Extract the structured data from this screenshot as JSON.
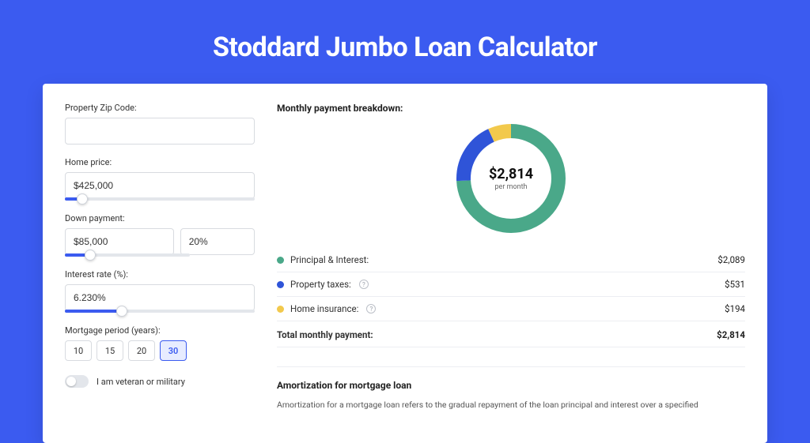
{
  "page": {
    "title": "Stoddard Jumbo Loan Calculator",
    "background_color": "#3b5bf0",
    "card_background": "#ffffff"
  },
  "form": {
    "zip": {
      "label": "Property Zip Code:",
      "value": ""
    },
    "home_price": {
      "label": "Home price:",
      "value": "$425,000",
      "slider_pct": 9
    },
    "down_payment": {
      "label": "Down payment:",
      "amount": "$85,000",
      "percent": "20%",
      "slider_pct": 20
    },
    "interest_rate": {
      "label": "Interest rate (%):",
      "value": "6.230%",
      "slider_pct": 30
    },
    "mortgage_period": {
      "label": "Mortgage period (years):",
      "options": [
        "10",
        "15",
        "20",
        "30"
      ],
      "selected": "30"
    },
    "veteran": {
      "label": "I am veteran or military",
      "on": false
    }
  },
  "breakdown": {
    "title": "Monthly payment breakdown:",
    "center_amount": "$2,814",
    "center_sub": "per month",
    "donut": {
      "series": [
        {
          "key": "principal_interest",
          "value": 2089,
          "color": "#4aa889"
        },
        {
          "key": "property_taxes",
          "value": 531,
          "color": "#2f54d8"
        },
        {
          "key": "home_insurance",
          "value": 194,
          "color": "#f2c94c"
        }
      ],
      "stroke_width": 18,
      "radius": 60,
      "background": "#ffffff"
    },
    "rows": [
      {
        "label": "Principal & Interest:",
        "value": "$2,089",
        "color": "#4aa889",
        "help": false
      },
      {
        "label": "Property taxes:",
        "value": "$531",
        "color": "#2f54d8",
        "help": true
      },
      {
        "label": "Home insurance:",
        "value": "$194",
        "color": "#f2c94c",
        "help": true
      }
    ],
    "total": {
      "label": "Total monthly payment:",
      "value": "$2,814"
    }
  },
  "amortization": {
    "title": "Amortization for mortgage loan",
    "body": "Amortization for a mortgage loan refers to the gradual repayment of the loan principal and interest over a specified"
  }
}
